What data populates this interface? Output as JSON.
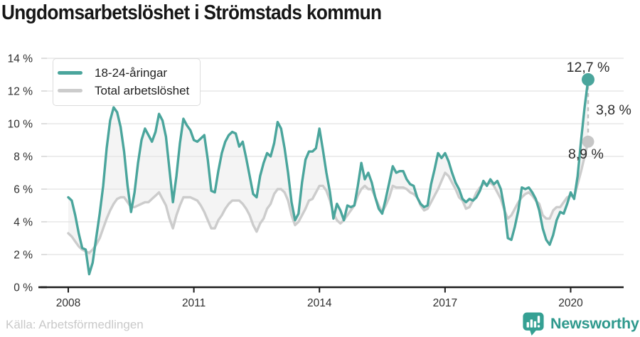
{
  "title": "Ungdomsarbetslöshet i Strömstads kommun",
  "annotations": {
    "youth_last": "12,7 %",
    "difference": "3,8 %",
    "total_last": "8,9 %"
  },
  "footer": {
    "source": "Källa: Arbetsförmedlingen",
    "brand": "Newsworthy"
  },
  "colors": {
    "accent_teal": "#4aa59c",
    "line_gray": "#cccccc",
    "dot_gray": "#c6c6c6",
    "band": "#f4f4f4",
    "grid": "#e2e2e2",
    "axis": "#1c1c1c",
    "tick_text": "#2e2e2e",
    "dashed_connector": "#c2c2c2",
    "brand_teal": "#2f998d"
  },
  "chart_data": {
    "type": "line",
    "title": "Ungdomsarbetslöshet i Strömstads kommun",
    "x_start": "2008-01",
    "x_end": "2020-06",
    "points_per_year": 12,
    "ylim": [
      0,
      14
    ],
    "grid": true,
    "legend_position": "top-left",
    "y_axis": {
      "unit": "%",
      "ticks": [
        {
          "label": "0 %",
          "value": 0
        },
        {
          "label": "2 %",
          "value": 2
        },
        {
          "label": "4 %",
          "value": 4
        },
        {
          "label": "6 %",
          "value": 6
        },
        {
          "label": "8 %",
          "value": 8
        },
        {
          "label": "10 %",
          "value": 10
        },
        {
          "label": "12 %",
          "value": 12
        },
        {
          "label": "14 %",
          "value": 14
        }
      ]
    },
    "x_axis": {
      "ticks": [
        {
          "label": "2008",
          "year": 2008
        },
        {
          "label": "2011",
          "year": 2011
        },
        {
          "label": "2014",
          "year": 2014
        },
        {
          "label": "2017",
          "year": 2017
        },
        {
          "label": "2020",
          "year": 2020
        }
      ]
    },
    "end_labels": {
      "youth": "12,7 %",
      "total": "8,9 %",
      "difference": "3,8 %"
    },
    "series": [
      {
        "name": "18-24-åringar",
        "color": "#4aa59c",
        "values": [
          5.5,
          5.3,
          4.4,
          3.3,
          2.4,
          2.3,
          0.8,
          1.5,
          3.0,
          4.5,
          6.2,
          8.5,
          10.2,
          11.0,
          10.7,
          9.8,
          8.3,
          6.2,
          4.6,
          5.8,
          7.6,
          9.0,
          9.7,
          9.3,
          8.9,
          9.5,
          10.6,
          10.2,
          9.2,
          7.2,
          5.2,
          6.8,
          8.8,
          10.3,
          9.9,
          9.6,
          9.0,
          8.9,
          9.1,
          9.3,
          7.8,
          5.9,
          5.8,
          7.1,
          8.2,
          8.9,
          9.3,
          9.5,
          9.4,
          8.6,
          8.9,
          7.9,
          6.8,
          5.7,
          5.5,
          6.8,
          7.6,
          8.2,
          8.0,
          8.8,
          10.1,
          9.7,
          8.5,
          7.0,
          5.2,
          4.1,
          4.5,
          6.4,
          7.8,
          8.3,
          8.3,
          8.5,
          9.7,
          8.4,
          7.0,
          5.8,
          4.2,
          5.1,
          4.7,
          4.1,
          5.0,
          4.9,
          5.0,
          6.2,
          7.6,
          6.6,
          7.0,
          6.4,
          5.5,
          4.8,
          4.5,
          5.4,
          6.4,
          7.4,
          7.0,
          7.1,
          7.1,
          6.6,
          6.3,
          6.2,
          5.5,
          5.1,
          4.9,
          5.0,
          6.3,
          7.2,
          8.2,
          7.9,
          8.2,
          7.7,
          7.0,
          6.4,
          6.0,
          5.4,
          5.2,
          5.4,
          5.3,
          5.5,
          5.9,
          6.5,
          6.2,
          6.6,
          6.3,
          6.5,
          6.0,
          4.8,
          3.0,
          2.9,
          3.7,
          4.7,
          6.1,
          6.0,
          6.1,
          5.8,
          5.4,
          4.7,
          3.6,
          2.9,
          2.6,
          3.2,
          4.1,
          4.6,
          4.5,
          5.1,
          5.8,
          5.4,
          6.8,
          9.0,
          11.0,
          12.7
        ]
      },
      {
        "name": "Total arbetslöshet",
        "color": "#cccccc",
        "values": [
          3.3,
          3.1,
          2.8,
          2.5,
          2.3,
          2.2,
          2.1,
          2.3,
          2.6,
          3.0,
          3.6,
          4.2,
          4.7,
          5.1,
          5.4,
          5.5,
          5.5,
          5.2,
          4.9,
          4.9,
          5.0,
          5.1,
          5.2,
          5.2,
          5.4,
          5.6,
          5.8,
          5.4,
          5.0,
          4.2,
          3.6,
          4.4,
          5.0,
          5.5,
          5.5,
          5.5,
          5.4,
          5.3,
          5.0,
          4.6,
          4.1,
          3.6,
          3.6,
          4.1,
          4.4,
          4.8,
          5.1,
          5.3,
          5.3,
          5.3,
          5.1,
          4.8,
          4.4,
          3.8,
          3.4,
          3.9,
          4.2,
          4.8,
          5.1,
          5.7,
          6.0,
          6.0,
          5.8,
          5.3,
          4.4,
          3.8,
          4.0,
          4.4,
          4.8,
          5.3,
          5.4,
          5.8,
          6.2,
          6.2,
          5.9,
          5.3,
          4.5,
          4.1,
          3.9,
          4.1,
          4.4,
          4.7,
          5.0,
          5.6,
          6.0,
          6.2,
          6.0,
          6.0,
          5.5,
          5.0,
          4.6,
          5.0,
          5.5,
          6.2,
          6.1,
          6.1,
          6.1,
          6.0,
          5.8,
          5.7,
          5.5,
          5.0,
          4.7,
          4.8,
          5.2,
          5.6,
          6.0,
          6.5,
          7.0,
          6.8,
          6.4,
          6.0,
          5.5,
          5.3,
          4.8,
          4.9,
          5.3,
          5.8,
          6.1,
          6.3,
          6.3,
          6.4,
          6.2,
          5.8,
          5.4,
          4.7,
          4.2,
          4.4,
          4.8,
          5.2,
          5.5,
          5.7,
          5.8,
          5.6,
          5.3,
          5.1,
          4.4,
          4.2,
          4.2,
          4.7,
          4.9,
          4.9,
          5.2,
          5.5,
          5.6,
          5.5,
          6.3,
          7.1,
          8.0,
          8.9
        ]
      }
    ]
  }
}
